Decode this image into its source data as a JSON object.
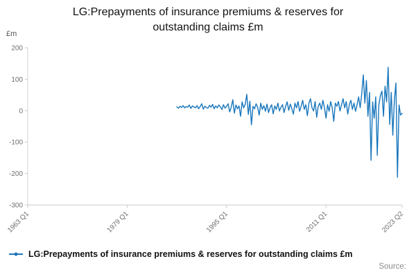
{
  "chart": {
    "title": "LG:Prepayments of insurance premiums & reserves for outstanding claims £m",
    "y_unit": "£m",
    "legend": "LG:Prepayments of insurance premiums & reserves for outstanding claims £m",
    "source": "Source:"
  },
  "chart_data": {
    "type": "line",
    "title": "LG:Prepayments of insurance premiums & reserves for outstanding claims £m",
    "series_name": "LG:Prepayments of insurance premiums & reserves for outstanding claims £m",
    "color": "#1876bc",
    "ylabel": "£m",
    "ylim": [
      -300,
      200
    ],
    "y_ticks": [
      200,
      100,
      0,
      -100,
      -200,
      -300
    ],
    "xlim": [
      1963.0,
      2023.25
    ],
    "x_ticks": [
      {
        "t": 1963.0,
        "label": "1963 Q1"
      },
      {
        "t": 1979.0,
        "label": "1979 Q1"
      },
      {
        "t": 1995.0,
        "label": "1995 Q1"
      },
      {
        "t": 2011.0,
        "label": "2011 Q1"
      },
      {
        "t": 2023.25,
        "label": "2023 Q2"
      }
    ],
    "start_label": "1987 Q1",
    "end_label": "2023 Q2",
    "start_t": 1987.0,
    "step": 0.25,
    "grid": false,
    "legend_position": "bottom-left",
    "values": [
      12,
      8,
      14,
      10,
      16,
      9,
      13,
      11,
      18,
      7,
      15,
      12,
      9,
      16,
      6,
      13,
      22,
      5,
      14,
      10,
      8,
      17,
      11,
      20,
      6,
      15,
      9,
      18,
      12,
      4,
      19,
      8,
      14,
      22,
      -4,
      11,
      35,
      -8,
      18,
      6,
      15,
      -18,
      28,
      9,
      20,
      52,
      -12,
      30,
      -45,
      14,
      6,
      22,
      10,
      -14,
      24,
      4,
      16,
      -2,
      21,
      -6,
      9,
      19,
      -10,
      15,
      4,
      24,
      -1,
      11,
      19,
      -6,
      14,
      28,
      1,
      21,
      6,
      -11,
      24,
      9,
      29,
      -2,
      14,
      33,
      4,
      19,
      -16,
      24,
      38,
      9,
      -1,
      29,
      -21,
      14,
      24,
      4,
      33,
      9,
      -24,
      19,
      -2,
      29,
      9,
      -34,
      24,
      14,
      29,
      -1,
      19,
      38,
      9,
      29,
      -11,
      19,
      33,
      4,
      24,
      -2,
      19,
      44,
      9,
      54,
      114,
      24,
      96,
      -18,
      58,
      -158,
      28,
      -24,
      44,
      -142,
      18,
      48,
      62,
      -18,
      78,
      28,
      138,
      -44,
      58,
      -78,
      33,
      88,
      -212,
      18,
      -14,
      -8
    ]
  }
}
